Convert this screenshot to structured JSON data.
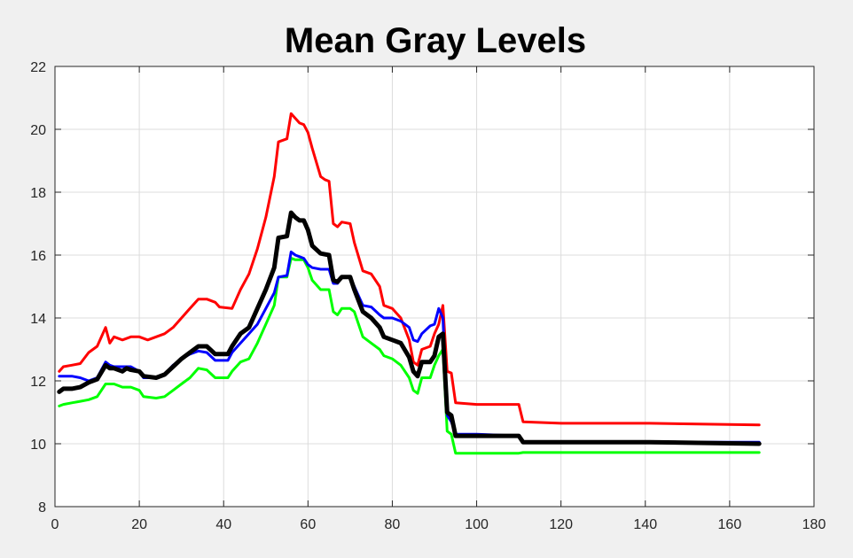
{
  "chart_data": {
    "type": "line",
    "title": "Mean Gray Levels",
    "xlabel": "",
    "ylabel": "",
    "xlim": [
      0,
      180
    ],
    "ylim": [
      8,
      22
    ],
    "xticks": [
      0,
      20,
      40,
      60,
      80,
      100,
      120,
      140,
      160,
      180
    ],
    "yticks": [
      8,
      10,
      12,
      14,
      16,
      18,
      20,
      22
    ],
    "grid": true,
    "legend": "none",
    "series": [
      {
        "color": "#ff0000",
        "width": 3,
        "points": [
          [
            1,
            12.3
          ],
          [
            2,
            12.45
          ],
          [
            4,
            12.5
          ],
          [
            6,
            12.55
          ],
          [
            8,
            12.9
          ],
          [
            10,
            13.1
          ],
          [
            12,
            13.7
          ],
          [
            13,
            13.2
          ],
          [
            14,
            13.4
          ],
          [
            16,
            13.3
          ],
          [
            18,
            13.4
          ],
          [
            20,
            13.4
          ],
          [
            22,
            13.3
          ],
          [
            24,
            13.4
          ],
          [
            26,
            13.5
          ],
          [
            28,
            13.7
          ],
          [
            30,
            14.0
          ],
          [
            32,
            14.3
          ],
          [
            34,
            14.6
          ],
          [
            36,
            14.6
          ],
          [
            38,
            14.5
          ],
          [
            39,
            14.35
          ],
          [
            42,
            14.3
          ],
          [
            44,
            14.9
          ],
          [
            46,
            15.4
          ],
          [
            48,
            16.2
          ],
          [
            50,
            17.2
          ],
          [
            52,
            18.5
          ],
          [
            53,
            19.6
          ],
          [
            55,
            19.7
          ],
          [
            56,
            20.5
          ],
          [
            57,
            20.35
          ],
          [
            58,
            20.2
          ],
          [
            59,
            20.15
          ],
          [
            60,
            19.9
          ],
          [
            61,
            19.4
          ],
          [
            63,
            18.5
          ],
          [
            64,
            18.4
          ],
          [
            65,
            18.35
          ],
          [
            66,
            17.0
          ],
          [
            67,
            16.9
          ],
          [
            68,
            17.05
          ],
          [
            70,
            17.0
          ],
          [
            71,
            16.4
          ],
          [
            73,
            15.5
          ],
          [
            75,
            15.4
          ],
          [
            77,
            15.0
          ],
          [
            78,
            14.4
          ],
          [
            80,
            14.3
          ],
          [
            82,
            14.0
          ],
          [
            84,
            13.3
          ],
          [
            85,
            12.6
          ],
          [
            86,
            12.5
          ],
          [
            87,
            13.0
          ],
          [
            89,
            13.1
          ],
          [
            90,
            13.5
          ],
          [
            91,
            13.8
          ],
          [
            92,
            14.4
          ],
          [
            93,
            12.3
          ],
          [
            94,
            12.25
          ],
          [
            95,
            11.3
          ],
          [
            100,
            11.25
          ],
          [
            110,
            11.25
          ],
          [
            111,
            10.7
          ],
          [
            120,
            10.65
          ],
          [
            140,
            10.65
          ],
          [
            141,
            10.65
          ],
          [
            167,
            10.6
          ]
        ]
      },
      {
        "color": "#00ff00",
        "width": 3,
        "points": [
          [
            1,
            11.2
          ],
          [
            2,
            11.25
          ],
          [
            4,
            11.3
          ],
          [
            6,
            11.35
          ],
          [
            8,
            11.4
          ],
          [
            10,
            11.5
          ],
          [
            12,
            11.9
          ],
          [
            14,
            11.9
          ],
          [
            16,
            11.8
          ],
          [
            18,
            11.8
          ],
          [
            20,
            11.7
          ],
          [
            21,
            11.5
          ],
          [
            24,
            11.45
          ],
          [
            26,
            11.5
          ],
          [
            28,
            11.7
          ],
          [
            30,
            11.9
          ],
          [
            32,
            12.1
          ],
          [
            34,
            12.4
          ],
          [
            36,
            12.35
          ],
          [
            38,
            12.1
          ],
          [
            41,
            12.1
          ],
          [
            42,
            12.3
          ],
          [
            44,
            12.6
          ],
          [
            46,
            12.7
          ],
          [
            48,
            13.2
          ],
          [
            50,
            13.8
          ],
          [
            52,
            14.4
          ],
          [
            53,
            15.3
          ],
          [
            55,
            15.3
          ],
          [
            56,
            15.9
          ],
          [
            57,
            15.85
          ],
          [
            58,
            15.85
          ],
          [
            59,
            15.85
          ],
          [
            60,
            15.6
          ],
          [
            61,
            15.2
          ],
          [
            63,
            14.9
          ],
          [
            65,
            14.9
          ],
          [
            66,
            14.2
          ],
          [
            67,
            14.1
          ],
          [
            68,
            14.3
          ],
          [
            70,
            14.3
          ],
          [
            71,
            14.2
          ],
          [
            73,
            13.4
          ],
          [
            75,
            13.2
          ],
          [
            77,
            13.0
          ],
          [
            78,
            12.8
          ],
          [
            80,
            12.7
          ],
          [
            82,
            12.5
          ],
          [
            84,
            12.1
          ],
          [
            85,
            11.7
          ],
          [
            86,
            11.6
          ],
          [
            87,
            12.1
          ],
          [
            89,
            12.1
          ],
          [
            90,
            12.5
          ],
          [
            91,
            12.8
          ],
          [
            92,
            13.0
          ],
          [
            93,
            10.4
          ],
          [
            94,
            10.3
          ],
          [
            95,
            9.7
          ],
          [
            100,
            9.7
          ],
          [
            110,
            9.7
          ],
          [
            111,
            9.72
          ],
          [
            120,
            9.72
          ],
          [
            140,
            9.72
          ],
          [
            141,
            9.72
          ],
          [
            167,
            9.72
          ]
        ]
      },
      {
        "color": "#0000ff",
        "width": 3,
        "points": [
          [
            1,
            12.15
          ],
          [
            2,
            12.15
          ],
          [
            4,
            12.15
          ],
          [
            6,
            12.1
          ],
          [
            8,
            12.0
          ],
          [
            10,
            12.1
          ],
          [
            12,
            12.6
          ],
          [
            13,
            12.5
          ],
          [
            14,
            12.45
          ],
          [
            16,
            12.45
          ],
          [
            17,
            12.45
          ],
          [
            18,
            12.45
          ],
          [
            20,
            12.3
          ],
          [
            21,
            12.1
          ],
          [
            24,
            12.1
          ],
          [
            26,
            12.2
          ],
          [
            28,
            12.5
          ],
          [
            30,
            12.7
          ],
          [
            32,
            12.85
          ],
          [
            34,
            12.95
          ],
          [
            36,
            12.9
          ],
          [
            38,
            12.65
          ],
          [
            41,
            12.65
          ],
          [
            42,
            12.9
          ],
          [
            44,
            13.2
          ],
          [
            46,
            13.5
          ],
          [
            48,
            13.8
          ],
          [
            50,
            14.3
          ],
          [
            52,
            14.8
          ],
          [
            53,
            15.3
          ],
          [
            55,
            15.35
          ],
          [
            56,
            16.1
          ],
          [
            57,
            16.0
          ],
          [
            58,
            15.95
          ],
          [
            59,
            15.9
          ],
          [
            60,
            15.7
          ],
          [
            61,
            15.6
          ],
          [
            63,
            15.55
          ],
          [
            65,
            15.55
          ],
          [
            66,
            15.1
          ],
          [
            67,
            15.1
          ],
          [
            68,
            15.3
          ],
          [
            70,
            15.3
          ],
          [
            71,
            15.0
          ],
          [
            73,
            14.4
          ],
          [
            75,
            14.35
          ],
          [
            77,
            14.1
          ],
          [
            78,
            14.0
          ],
          [
            80,
            14.0
          ],
          [
            82,
            13.9
          ],
          [
            84,
            13.7
          ],
          [
            85,
            13.3
          ],
          [
            86,
            13.25
          ],
          [
            87,
            13.5
          ],
          [
            89,
            13.75
          ],
          [
            90,
            13.8
          ],
          [
            91,
            14.3
          ],
          [
            92,
            14.0
          ],
          [
            93,
            10.9
          ],
          [
            94,
            10.7
          ],
          [
            95,
            10.3
          ],
          [
            100,
            10.3
          ],
          [
            110,
            10.25
          ],
          [
            111,
            10.05
          ],
          [
            120,
            10.05
          ],
          [
            140,
            10.05
          ],
          [
            141,
            10.05
          ],
          [
            167,
            10.05
          ]
        ]
      },
      {
        "color": "#000000",
        "width": 5,
        "points": [
          [
            1,
            11.65
          ],
          [
            2,
            11.75
          ],
          [
            4,
            11.75
          ],
          [
            6,
            11.8
          ],
          [
            8,
            11.95
          ],
          [
            10,
            12.05
          ],
          [
            12,
            12.5
          ],
          [
            13,
            12.4
          ],
          [
            14,
            12.4
          ],
          [
            16,
            12.3
          ],
          [
            17,
            12.4
          ],
          [
            18,
            12.35
          ],
          [
            20,
            12.3
          ],
          [
            21,
            12.15
          ],
          [
            24,
            12.1
          ],
          [
            26,
            12.2
          ],
          [
            28,
            12.45
          ],
          [
            30,
            12.7
          ],
          [
            32,
            12.9
          ],
          [
            34,
            13.1
          ],
          [
            36,
            13.1
          ],
          [
            38,
            12.85
          ],
          [
            41,
            12.85
          ],
          [
            42,
            13.1
          ],
          [
            44,
            13.5
          ],
          [
            46,
            13.7
          ],
          [
            48,
            14.3
          ],
          [
            50,
            14.9
          ],
          [
            52,
            15.6
          ],
          [
            53,
            16.55
          ],
          [
            55,
            16.6
          ],
          [
            56,
            17.35
          ],
          [
            57,
            17.2
          ],
          [
            58,
            17.1
          ],
          [
            59,
            17.1
          ],
          [
            60,
            16.8
          ],
          [
            61,
            16.3
          ],
          [
            63,
            16.05
          ],
          [
            65,
            16.0
          ],
          [
            66,
            15.2
          ],
          [
            67,
            15.15
          ],
          [
            68,
            15.3
          ],
          [
            70,
            15.3
          ],
          [
            71,
            14.9
          ],
          [
            73,
            14.2
          ],
          [
            75,
            14.0
          ],
          [
            77,
            13.7
          ],
          [
            78,
            13.4
          ],
          [
            80,
            13.3
          ],
          [
            82,
            13.2
          ],
          [
            84,
            12.75
          ],
          [
            85,
            12.3
          ],
          [
            86,
            12.15
          ],
          [
            87,
            12.6
          ],
          [
            89,
            12.6
          ],
          [
            90,
            12.8
          ],
          [
            91,
            13.4
          ],
          [
            92,
            13.5
          ],
          [
            93,
            11.0
          ],
          [
            94,
            10.9
          ],
          [
            95,
            10.25
          ],
          [
            100,
            10.25
          ],
          [
            110,
            10.25
          ],
          [
            111,
            10.05
          ],
          [
            120,
            10.05
          ],
          [
            140,
            10.05
          ],
          [
            141,
            10.05
          ],
          [
            167,
            10.0
          ]
        ]
      }
    ]
  }
}
